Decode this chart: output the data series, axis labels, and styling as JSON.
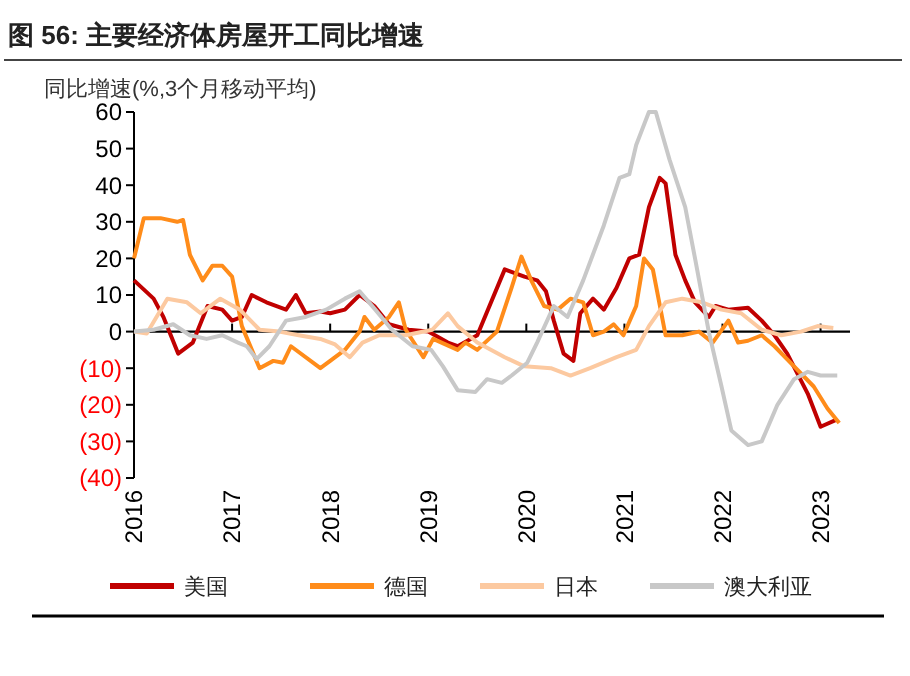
{
  "chart_data": {
    "type": "line",
    "title": "图 56: 主要经济体房屋开工同比增速",
    "ylabel": "同比增速(%,3个月移动平均)",
    "xlim": [
      2016,
      2023.3
    ],
    "xticks": [
      2016,
      2017,
      2018,
      2019,
      2020,
      2021,
      2022,
      2023
    ],
    "ylim": [
      -40,
      60
    ],
    "yticks": [
      {
        "value": -40,
        "label": "(40)"
      },
      {
        "value": -30,
        "label": "(30)"
      },
      {
        "value": -20,
        "label": "(20)"
      },
      {
        "value": -10,
        "label": "(10)"
      },
      0,
      10,
      20,
      30,
      40,
      50,
      60
    ],
    "legend": "bottom",
    "ref_lines": [
      {
        "axis": "y",
        "value": 0,
        "color": "#000000"
      }
    ],
    "series": [
      {
        "name": "美国",
        "color": "#c00000",
        "x": [
          2016,
          2016.2,
          2016.3,
          2016.45,
          2016.6,
          2016.75,
          2016.9,
          2017,
          2017.1,
          2017.2,
          2017.35,
          2017.55,
          2017.65,
          2017.75,
          2017.9,
          2018,
          2018.15,
          2018.3,
          2018.45,
          2018.6,
          2018.8,
          2019,
          2019.2,
          2019.3,
          2019.5,
          2019.78,
          2019.98,
          2020.11,
          2020.2,
          2020.28,
          2020.38,
          2020.48,
          2020.55,
          2020.68,
          2020.79,
          2020.92,
          2021.05,
          2021.15,
          2021.25,
          2021.36,
          2021.42,
          2021.52,
          2021.62,
          2021.72,
          2021.86,
          2021.93,
          2022.06,
          2022.26,
          2022.4,
          2022.53,
          2022.66,
          2022.87,
          2023,
          2023.17
        ],
        "values": [
          14,
          9,
          4,
          -6,
          -3,
          7,
          6,
          3,
          4,
          10,
          8,
          6,
          10,
          5,
          5.5,
          5,
          6,
          10,
          7,
          2,
          0.5,
          0,
          -3,
          -4,
          -1,
          17,
          15,
          14,
          11,
          3,
          -6,
          -8,
          5,
          9,
          6,
          12,
          20,
          21,
          34,
          42,
          40.5,
          21,
          14,
          8,
          4,
          7,
          6,
          6.5,
          3,
          -1,
          -6,
          -17,
          -26,
          -24
        ]
      },
      {
        "name": "德国",
        "color": "#ff8c1a",
        "x": [
          2016,
          2016.1,
          2016.27,
          2016.44,
          2016.5,
          2016.57,
          2016.7,
          2016.8,
          2016.9,
          2017,
          2017.1,
          2017.28,
          2017.42,
          2017.52,
          2017.6,
          2017.9,
          2018,
          2018.15,
          2018.3,
          2018.35,
          2018.45,
          2018.6,
          2018.7,
          2018.77,
          2018.95,
          2019.05,
          2019.3,
          2019.38,
          2019.5,
          2019.7,
          2019.85,
          2019.95,
          2020.05,
          2020.18,
          2020.32,
          2020.45,
          2020.58,
          2020.68,
          2020.79,
          2020.89,
          2020.99,
          2021.12,
          2021.2,
          2021.29,
          2021.42,
          2021.59,
          2021.76,
          2021.9,
          2022.06,
          2022.16,
          2022.26,
          2022.4,
          2022.53,
          2022.73,
          2022.93,
          2023.07,
          2023.19
        ],
        "values": [
          20,
          31,
          31,
          30,
          30.5,
          21,
          14,
          18,
          18,
          15,
          1.5,
          -10,
          -8,
          -8.5,
          -4,
          -10,
          -8,
          -5,
          0,
          4,
          0.5,
          4,
          8,
          0.5,
          -7,
          -2,
          -5,
          -3,
          -5,
          0,
          12,
          20.5,
          14,
          7,
          6,
          9,
          8,
          -1,
          0,
          2,
          -1,
          7,
          20,
          17,
          -1,
          -1,
          0,
          -3,
          3,
          -3,
          -2.5,
          -1,
          -4,
          -9.5,
          -15,
          -21,
          -25
        ]
      },
      {
        "name": "日本",
        "color": "#fcc9a0",
        "x": [
          2016,
          2016.13,
          2016.34,
          2016.54,
          2016.68,
          2016.88,
          2017.08,
          2017.28,
          2017.48,
          2017.68,
          2017.9,
          2018.05,
          2018.2,
          2018.33,
          2018.5,
          2018.77,
          2019.04,
          2019.2,
          2019.3,
          2019.5,
          2019.78,
          2019.98,
          2020.25,
          2020.45,
          2020.65,
          2020.92,
          2021.12,
          2021.25,
          2021.42,
          2021.59,
          2021.79,
          2021.99,
          2022.19,
          2022.4,
          2022.6,
          2022.8,
          2022.97,
          2023.13
        ],
        "values": [
          0,
          -0.5,
          9,
          8,
          5,
          9,
          6,
          0.5,
          0,
          -1,
          -2,
          -3.5,
          -7,
          -3,
          -1,
          -1,
          0.5,
          5,
          1.5,
          -3,
          -7,
          -9.5,
          -10,
          -12,
          -10,
          -7,
          -5,
          1.5,
          8,
          9,
          8,
          6,
          5,
          0.5,
          -1,
          0,
          1.5,
          1
        ]
      },
      {
        "name": "澳大利亚",
        "color": "#c8c8c8",
        "x": [
          2016,
          2016.2,
          2016.4,
          2016.57,
          2016.74,
          2016.9,
          2017.06,
          2017.15,
          2017.25,
          2017.38,
          2017.55,
          2017.75,
          2017.96,
          2018.15,
          2018.3,
          2018.46,
          2018.63,
          2018.84,
          2019.03,
          2019.15,
          2019.3,
          2019.48,
          2019.6,
          2019.75,
          2019.85,
          2020.01,
          2020.11,
          2020.28,
          2020.42,
          2020.58,
          2020.79,
          2020.95,
          2021.05,
          2021.12,
          2021.25,
          2021.32,
          2021.46,
          2021.62,
          2021.72,
          2021.86,
          2021.99,
          2022.09,
          2022.26,
          2022.4,
          2022.56,
          2022.73,
          2022.87,
          2023,
          2023.17
        ],
        "values": [
          0,
          0.5,
          2,
          -1,
          -2,
          -1,
          -3,
          -4,
          -7.5,
          -4,
          3,
          4,
          6,
          9,
          11,
          6,
          0.5,
          -4,
          -5,
          -9.5,
          -16,
          -16.5,
          -13,
          -14,
          -12,
          -8.5,
          -3,
          7,
          4,
          14,
          29,
          42,
          43,
          51,
          60,
          60,
          47,
          34,
          20,
          0,
          -15,
          -27,
          -31,
          -30,
          -20,
          -13,
          -11,
          -12,
          -12
        ]
      }
    ]
  }
}
